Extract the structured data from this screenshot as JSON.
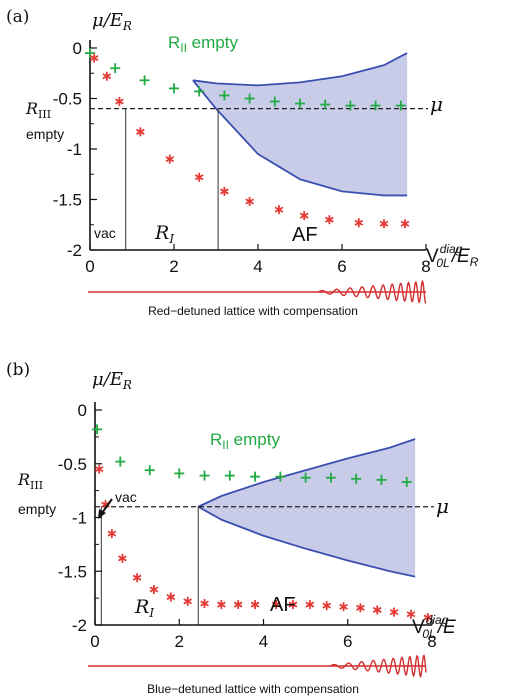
{
  "chart_data": [
    {
      "type": "scatter",
      "panel_label": "(a)",
      "ylabel": "μ/E",
      "ylabel_sub": "R",
      "xlabel_main": "V",
      "xlabel_sup": "diag",
      "xlabel_sub": "0L",
      "xlabel_tail": "/E",
      "xlabel_tail_sub": "R",
      "xlim": [
        0,
        8
      ],
      "ylim": [
        -2,
        0
      ],
      "x_ticks": [
        "0",
        "2",
        "4",
        "6",
        "8"
      ],
      "y_ticks": [
        "0",
        "-0.5",
        "-1",
        "-1.5",
        "-2"
      ],
      "annotations": {
        "rii_empty": "R",
        "rii_empty_sub": "II",
        "rii_empty_tail": " empty",
        "riii": "R",
        "riii_sub": "III",
        "riii_empty": "empty",
        "mu": "μ",
        "vac": "vac",
        "ri": "R",
        "ri_sub": "I",
        "af": "AF"
      },
      "mu_line": -0.6,
      "vlines": [
        0.85,
        3.05
      ],
      "series": [
        {
          "marker": "+",
          "color": "#22aa44",
          "points": [
            [
              0,
              -0.05
            ],
            [
              0.6,
              -0.2
            ],
            [
              1.3,
              -0.32
            ],
            [
              2,
              -0.4
            ],
            [
              2.6,
              -0.43
            ],
            [
              3.2,
              -0.47
            ],
            [
              3.8,
              -0.5
            ],
            [
              4.4,
              -0.53
            ],
            [
              5,
              -0.55
            ],
            [
              5.6,
              -0.56
            ],
            [
              6.2,
              -0.57
            ],
            [
              6.8,
              -0.57
            ],
            [
              7.4,
              -0.57
            ]
          ]
        },
        {
          "marker": "*",
          "color": "#e53935",
          "points": [
            [
              0.1,
              -0.1
            ],
            [
              0.4,
              -0.28
            ],
            [
              0.7,
              -0.53
            ],
            [
              1.2,
              -0.83
            ],
            [
              1.9,
              -1.1
            ],
            [
              2.6,
              -1.28
            ],
            [
              3.2,
              -1.42
            ],
            [
              3.8,
              -1.52
            ],
            [
              4.5,
              -1.6
            ],
            [
              5.1,
              -1.66
            ],
            [
              5.7,
              -1.7
            ],
            [
              6.4,
              -1.73
            ],
            [
              7,
              -1.74
            ],
            [
              7.5,
              -1.74
            ]
          ]
        }
      ],
      "af_region": {
        "upper": [
          [
            2.45,
            -0.32
          ],
          [
            3,
            -0.35
          ],
          [
            4,
            -0.37
          ],
          [
            5,
            -0.34
          ],
          [
            6,
            -0.28
          ],
          [
            7,
            -0.17
          ],
          [
            7.55,
            -0.05
          ]
        ],
        "lower": [
          [
            2.45,
            -0.32
          ],
          [
            3,
            -0.6
          ],
          [
            4,
            -1.05
          ],
          [
            5,
            -1.3
          ],
          [
            6,
            -1.42
          ],
          [
            7,
            -1.46
          ],
          [
            7.55,
            -1.46
          ]
        ],
        "fill": "#c9cce9",
        "stroke": "#3b4fb0"
      },
      "caption": "Red−detuned lattice with compensation",
      "wave_color": "#d32f2f"
    },
    {
      "type": "scatter",
      "panel_label": "(b)",
      "ylabel": "μ/E",
      "ylabel_sub": "R",
      "xlabel_main": "V",
      "xlabel_sup": "diag",
      "xlabel_sub": "0L",
      "xlabel_tail": "/E",
      "xlabel_tail_sub": "",
      "xlim": [
        0,
        8
      ],
      "ylim": [
        -2,
        0
      ],
      "x_ticks": [
        "0",
        "2",
        "4",
        "6",
        "8"
      ],
      "y_ticks": [
        "0",
        "-0.5",
        "-1",
        "-1.5",
        "-2"
      ],
      "annotations": {
        "rii_empty": "R",
        "rii_empty_sub": "II",
        "rii_empty_tail": " empty",
        "riii": "R",
        "riii_sub": "III",
        "riii_empty": "empty",
        "mu": "μ",
        "vac": "vac",
        "ri": "R",
        "ri_sub": "I",
        "af": "AF"
      },
      "mu_line": -0.9,
      "vlines": [
        0.15,
        2.45
      ],
      "series": [
        {
          "marker": "+",
          "color": "#22aa44",
          "points": [
            [
              0.05,
              -0.18
            ],
            [
              0.6,
              -0.48
            ],
            [
              1.3,
              -0.56
            ],
            [
              2,
              -0.59
            ],
            [
              2.6,
              -0.61
            ],
            [
              3.2,
              -0.61
            ],
            [
              3.8,
              -0.62
            ],
            [
              4.4,
              -0.62
            ],
            [
              5,
              -0.63
            ],
            [
              5.6,
              -0.63
            ],
            [
              6.2,
              -0.64
            ],
            [
              6.8,
              -0.65
            ],
            [
              7.4,
              -0.67
            ]
          ]
        },
        {
          "marker": "*",
          "color": "#e53935",
          "points": [
            [
              0.1,
              -0.55
            ],
            [
              0.25,
              -0.88
            ],
            [
              0.4,
              -1.15
            ],
            [
              0.65,
              -1.38
            ],
            [
              1,
              -1.56
            ],
            [
              1.4,
              -1.67
            ],
            [
              1.8,
              -1.74
            ],
            [
              2.2,
              -1.78
            ],
            [
              2.6,
              -1.8
            ],
            [
              3,
              -1.81
            ],
            [
              3.4,
              -1.81
            ],
            [
              3.8,
              -1.81
            ],
            [
              4.3,
              -1.81
            ],
            [
              4.7,
              -1.81
            ],
            [
              5.1,
              -1.81
            ],
            [
              5.5,
              -1.82
            ],
            [
              5.9,
              -1.83
            ],
            [
              6.3,
              -1.84
            ],
            [
              6.7,
              -1.86
            ],
            [
              7.1,
              -1.88
            ],
            [
              7.5,
              -1.9
            ],
            [
              7.9,
              -1.93
            ]
          ]
        }
      ],
      "af_region": {
        "upper": [
          [
            2.45,
            -0.9
          ],
          [
            3,
            -0.8
          ],
          [
            4,
            -0.67
          ],
          [
            5,
            -0.56
          ],
          [
            6,
            -0.45
          ],
          [
            7,
            -0.35
          ],
          [
            7.6,
            -0.27
          ]
        ],
        "lower": [
          [
            2.45,
            -0.9
          ],
          [
            3,
            -1.02
          ],
          [
            4,
            -1.17
          ],
          [
            5,
            -1.29
          ],
          [
            6,
            -1.4
          ],
          [
            7,
            -1.5
          ],
          [
            7.6,
            -1.55
          ]
        ],
        "fill": "#c9cce9",
        "stroke": "#3b4fb0"
      },
      "caption": "Blue−detuned lattice with compensation",
      "wave_color": "#d32f2f"
    }
  ]
}
